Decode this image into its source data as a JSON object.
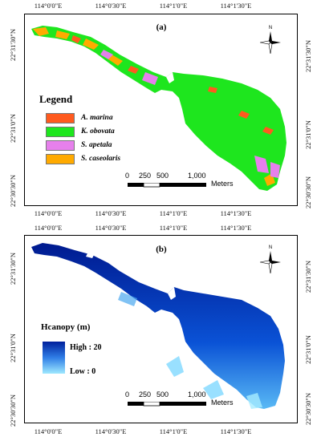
{
  "panel_a": {
    "label": "(a)",
    "top_ticks": [
      "114°0'0\"E",
      "114°0'30\"E",
      "114°1'0\"E",
      "114°1'30\"E"
    ],
    "bottom_ticks": [
      "114°0'0\"E",
      "114°0'30\"E",
      "114°1'0\"E",
      "114°1'30\"E"
    ],
    "left_ticks": [
      "22°31'30\"N",
      "22°31'0\"N",
      "22°30'30\"N"
    ],
    "right_ticks": [
      "22°31'30\"N",
      "22°31'0\"N",
      "22°30'30\"N"
    ],
    "legend": {
      "title": "Legend",
      "items": [
        {
          "label": "A. marina",
          "color": "#ff5a1f"
        },
        {
          "label": "K. obovata",
          "color": "#1ee61e"
        },
        {
          "label": "S. apetala",
          "color": "#e680ec"
        },
        {
          "label": "S. caseolaris",
          "color": "#ffaa00"
        }
      ]
    },
    "scale": {
      "ticks": [
        "0",
        "250",
        "500",
        "1,000"
      ],
      "unit": "Meters"
    },
    "north": "N"
  },
  "panel_b": {
    "label": "(b)",
    "top_ticks": [
      "114°0'0\"E",
      "114°0'30\"E",
      "114°1'0\"E",
      "114°1'30\"E"
    ],
    "bottom_ticks": [
      "114°0'0\"E",
      "114°0'30\"E",
      "114°1'0\"E",
      "114°1'30\"E"
    ],
    "left_ticks": [
      "22°31'30\"N",
      "22°31'0\"N",
      "22°30'30\"N"
    ],
    "right_ticks": [
      "22°31'30\"N",
      "22°31'0\"N",
      "22°30'30\"N"
    ],
    "legend": {
      "title": "Hcanopy (m)",
      "high": "High : 20",
      "low": "Low : 0",
      "color_high": "#00209c",
      "color_low": "#9fe9ff"
    },
    "scale": {
      "ticks": [
        "0",
        "250",
        "500",
        "1,000"
      ],
      "unit": "Meters"
    },
    "north": "N"
  }
}
